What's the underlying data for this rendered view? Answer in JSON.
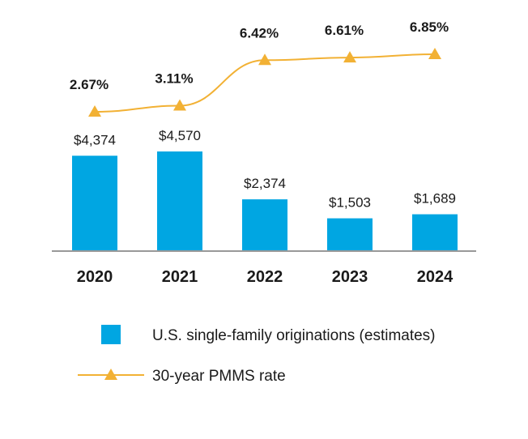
{
  "chart_data": {
    "type": "bar",
    "categories": [
      "2020",
      "2021",
      "2022",
      "2023",
      "2024"
    ],
    "series": [
      {
        "name": "U.S. single-family originations (estimates)",
        "type": "bar",
        "values": [
          4374,
          4570,
          2374,
          1503,
          1689
        ],
        "labels": [
          "$4,374",
          "$4,570",
          "$2,374",
          "$1,503",
          "$1,689"
        ],
        "color": "#00a6e2"
      },
      {
        "name": "30-year PMMS rate",
        "type": "line",
        "marker": "triangle",
        "values": [
          2.67,
          3.11,
          6.42,
          6.61,
          6.85
        ],
        "labels": [
          "2.67%",
          "3.11%",
          "6.42%",
          "6.61%",
          "6.85%"
        ],
        "color": "#f2b134"
      }
    ],
    "title": "",
    "xlabel": "",
    "ylabel": "",
    "legend_position": "bottom",
    "grid": false
  }
}
